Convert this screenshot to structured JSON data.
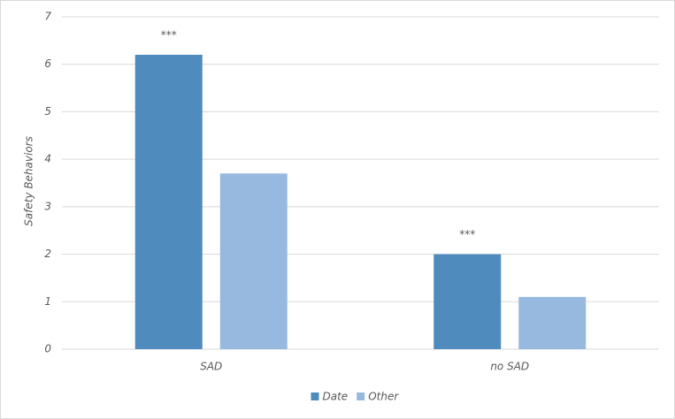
{
  "chart_data": {
    "type": "bar",
    "ylabel": "Safety Behaviors",
    "categories": [
      "SAD",
      "no SAD"
    ],
    "series": [
      {
        "name": "Date",
        "color": "#4f8bbd",
        "values": [
          6.2,
          2.0
        ],
        "annotations": [
          "***",
          "***"
        ]
      },
      {
        "name": "Other",
        "color": "#98b9df",
        "values": [
          3.7,
          1.1
        ]
      }
    ],
    "ylim": [
      0,
      7
    ],
    "yticks": [
      0,
      1,
      2,
      3,
      4,
      5,
      6,
      7
    ],
    "grid": true,
    "legend": "bottom"
  }
}
